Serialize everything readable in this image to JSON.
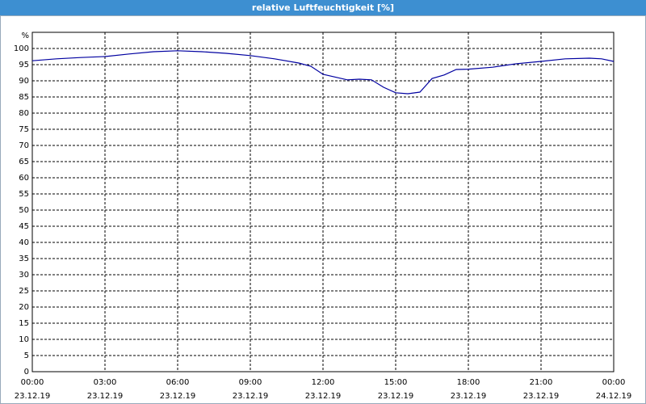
{
  "chart_data": {
    "type": "line",
    "title": "relative Luftfeuchtigkeit [%]",
    "y_unit": "%",
    "x": [
      0,
      1,
      2,
      3,
      4,
      5,
      6,
      7,
      8,
      9,
      10,
      11,
      11.5,
      12,
      13,
      13.5,
      14,
      14.5,
      15,
      15.5,
      16,
      16.3,
      16.5,
      17,
      17.5,
      18,
      19,
      20,
      21,
      22,
      23,
      23.5,
      24
    ],
    "series": [
      {
        "name": "relative Luftfeuchtigkeit",
        "color": "#0000a0",
        "values": [
          96.2,
          96.8,
          97.2,
          97.5,
          98.3,
          99,
          99.3,
          99,
          98.5,
          97.8,
          96.8,
          95.5,
          94.5,
          92,
          90.3,
          90.5,
          90.3,
          88,
          86.3,
          86,
          86.5,
          89,
          90.7,
          91.8,
          93.5,
          93.6,
          94.2,
          95.3,
          96,
          96.8,
          97,
          96.8,
          96
        ]
      }
    ],
    "xlim": [
      0,
      24
    ],
    "xticks": [
      {
        "value": 0,
        "label": "00:00",
        "date": "23.12.19"
      },
      {
        "value": 3,
        "label": "03:00",
        "date": "23.12.19"
      },
      {
        "value": 6,
        "label": "06:00",
        "date": "23.12.19"
      },
      {
        "value": 9,
        "label": "09:00",
        "date": "23.12.19"
      },
      {
        "value": 12,
        "label": "12:00",
        "date": "23.12.19"
      },
      {
        "value": 15,
        "label": "15:00",
        "date": "23.12.19"
      },
      {
        "value": 18,
        "label": "18:00",
        "date": "23.12.19"
      },
      {
        "value": 21,
        "label": "21:00",
        "date": "23.12.19"
      },
      {
        "value": 24,
        "label": "00:00",
        "date": "24.12.19"
      }
    ],
    "ylim": [
      0,
      105
    ],
    "yticks": [
      0,
      5,
      10,
      15,
      20,
      25,
      30,
      35,
      40,
      45,
      50,
      55,
      60,
      65,
      70,
      75,
      80,
      85,
      90,
      95,
      100
    ],
    "grid": true
  }
}
